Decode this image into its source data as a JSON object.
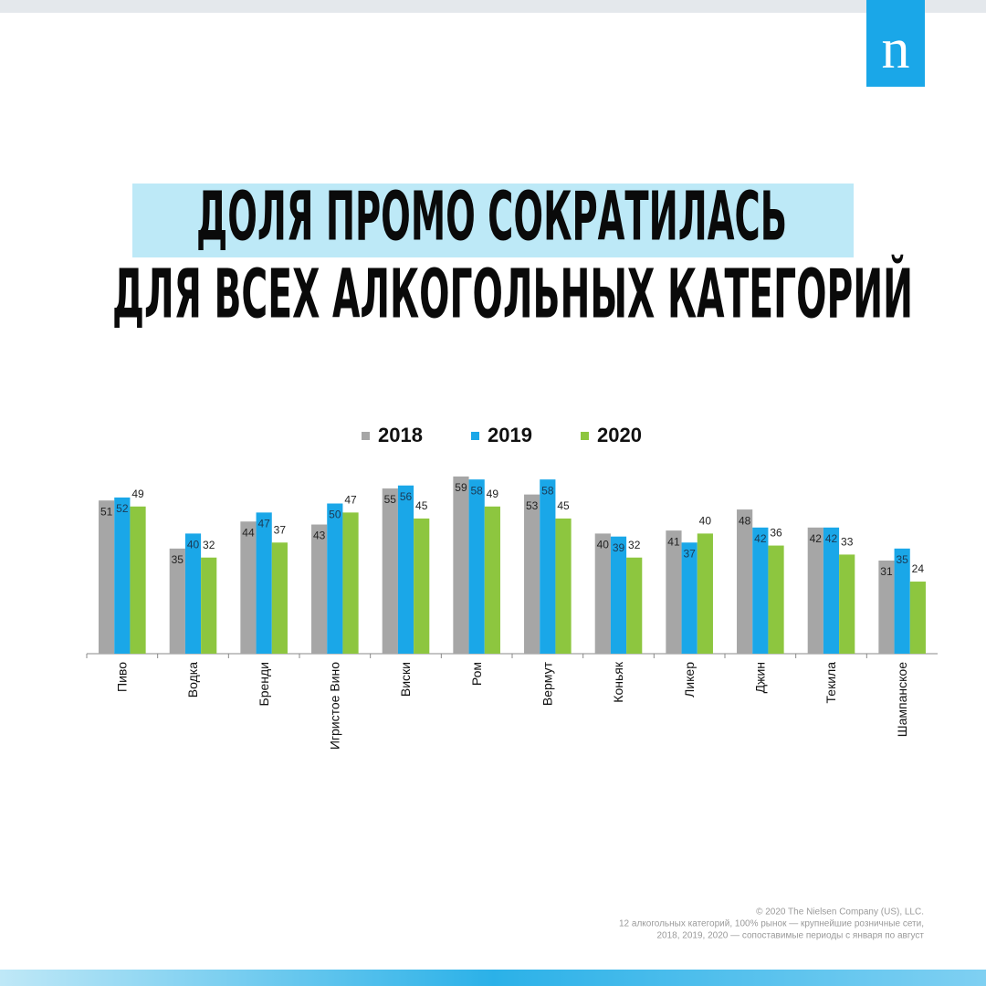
{
  "logo": "n",
  "headline": [
    "ДОЛЯ ПРОМО СОКРАТИЛАСЬ",
    "ДЛЯ ВСЕХ АЛКОГОЛЬНЫХ КАТЕГОРИЙ"
  ],
  "chart_data": {
    "type": "bar",
    "categories": [
      "Пиво",
      "Водка",
      "Бренди",
      "Игристое Вино",
      "Виски",
      "Ром",
      "Вермут",
      "Коньяк",
      "Ликер",
      "Джин",
      "Текила",
      "Шампанское"
    ],
    "series": [
      {
        "name": "2018",
        "color": "#a6a6a6",
        "values": [
          51,
          35,
          44,
          43,
          55,
          59,
          53,
          40,
          41,
          48,
          42,
          31
        ]
      },
      {
        "name": "2019",
        "color": "#1aa7e8",
        "values": [
          52,
          40,
          47,
          50,
          56,
          58,
          58,
          39,
          37,
          42,
          42,
          35
        ]
      },
      {
        "name": "2020",
        "color": "#8dc63f",
        "values": [
          49,
          32,
          37,
          47,
          45,
          49,
          45,
          32,
          40,
          36,
          33,
          24
        ]
      }
    ]
  },
  "footer": [
    "© 2020 The Nielsen Company (US), LLC.",
    "12 алкогольных категорий, 100% рынок — крупнейшие розничные сети,",
    "2018, 2019, 2020 — сопоставимые периоды с января по август"
  ]
}
